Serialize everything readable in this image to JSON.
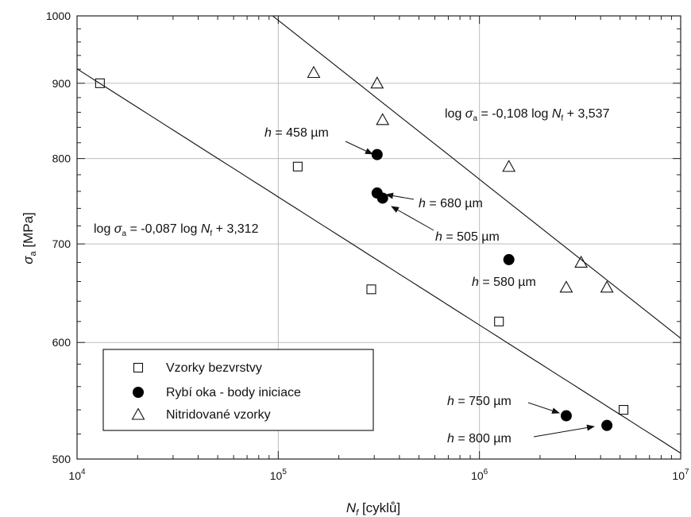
{
  "chart_data": {
    "type": "scatter",
    "x_scale": "log",
    "y_scale": "log",
    "xlim": [
      10000,
      10000000
    ],
    "ylim": [
      500,
      1000
    ],
    "grid": true,
    "legend_position": "bottom-left",
    "xlabel": {
      "symbol": "N",
      "sub": "f",
      "text": " [cyklů]"
    },
    "ylabel": {
      "symbol": "σ",
      "sub": "a",
      "text": " [MPa]"
    },
    "x_ticks": [
      {
        "value": 10000,
        "base": "10",
        "exp": "4"
      },
      {
        "value": 100000,
        "base": "10",
        "exp": "5"
      },
      {
        "value": 1000000,
        "base": "10",
        "exp": "6"
      },
      {
        "value": 10000000,
        "base": "10",
        "exp": "7"
      }
    ],
    "y_ticks": [
      {
        "value": 500,
        "label": "500"
      },
      {
        "value": 600,
        "label": "600"
      },
      {
        "value": 700,
        "label": "700"
      },
      {
        "value": 800,
        "label": "800"
      },
      {
        "value": 900,
        "label": "900"
      },
      {
        "value": 1000,
        "label": "1000"
      }
    ],
    "series": [
      {
        "name": "Vzorky bezvrstvy",
        "marker": "square-open",
        "points": [
          {
            "x": 13000,
            "y": 900
          },
          {
            "x": 125000,
            "y": 790
          },
          {
            "x": 290000,
            "y": 652
          },
          {
            "x": 1250000,
            "y": 620
          },
          {
            "x": 5200000,
            "y": 540
          }
        ]
      },
      {
        "name": "Rybí oka - body iniciace",
        "marker": "circle-filled",
        "points": [
          {
            "x": 310000,
            "y": 805
          },
          {
            "x": 310000,
            "y": 758
          },
          {
            "x": 330000,
            "y": 752
          },
          {
            "x": 1400000,
            "y": 683
          },
          {
            "x": 2700000,
            "y": 535
          },
          {
            "x": 4300000,
            "y": 527
          }
        ]
      },
      {
        "name": "Nitridované vzorky",
        "marker": "triangle-open",
        "points": [
          {
            "x": 150000,
            "y": 915
          },
          {
            "x": 310000,
            "y": 900
          },
          {
            "x": 330000,
            "y": 850
          },
          {
            "x": 1400000,
            "y": 790
          },
          {
            "x": 3200000,
            "y": 680
          },
          {
            "x": 2700000,
            "y": 654
          },
          {
            "x": 4300000,
            "y": 654
          }
        ]
      }
    ],
    "fit_lines": [
      {
        "slope": -0.087,
        "intercept": 3.312
      },
      {
        "slope": -0.108,
        "intercept": 3.537
      }
    ],
    "equations": [
      {
        "prefix": "log ",
        "sigma": "σ",
        "sigma_sub": "a",
        "mid": " = -0,087 log ",
        "n": "N",
        "n_sub": "f",
        "suffix": " + 3,312"
      },
      {
        "prefix": "log ",
        "sigma": "σ",
        "sigma_sub": "a",
        "mid": " = -0,108 log ",
        "n": "N",
        "n_sub": "f",
        "suffix": " + 3,537"
      }
    ],
    "annotations": [
      {
        "h": "h",
        "text": " = 458 µm"
      },
      {
        "h": "h",
        "text": " = 680 µm"
      },
      {
        "h": "h",
        "text": " = 505 µm"
      },
      {
        "h": "h",
        "text": " = 580 µm"
      },
      {
        "h": "h",
        "text": " = 750 µm"
      },
      {
        "h": "h",
        "text": " = 800 µm"
      }
    ]
  }
}
